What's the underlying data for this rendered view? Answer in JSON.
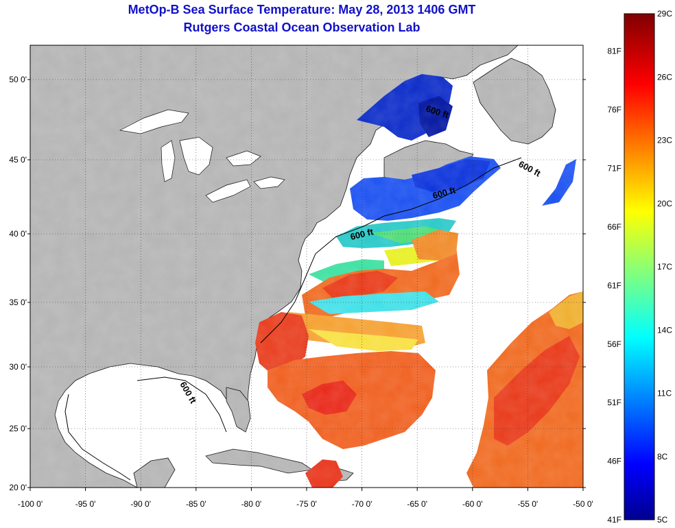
{
  "title": "MetOp-B Sea Surface Temperature:  May 28, 2013 1406 GMT",
  "subtitle": "Rutgers Coastal Ocean Observation Lab",
  "contour_label": "600 ft",
  "lon_ticks": [
    "-100 0'",
    "-95 0'",
    "-90 0'",
    "-85 0'",
    "-80 0'",
    "-75 0'",
    "-70 0'",
    "-65 0'",
    "-60 0'",
    "-55 0'",
    "-50 0'"
  ],
  "lat_ticks": [
    "20 0'",
    "25 0'",
    "30 0'",
    "35 0'",
    "40 0'",
    "45 0'",
    "50 0'"
  ],
  "colorbar": {
    "celsius": [
      "5C",
      "8C",
      "11C",
      "14C",
      "17C",
      "20C",
      "23C",
      "26C",
      "29C"
    ],
    "fahrenheit": [
      "41F",
      "46F",
      "51F",
      "56F",
      "61F",
      "66F",
      "71F",
      "76F",
      "81F"
    ]
  },
  "colors": {
    "land": "#b4b4b4",
    "title": "#1010c8"
  }
}
